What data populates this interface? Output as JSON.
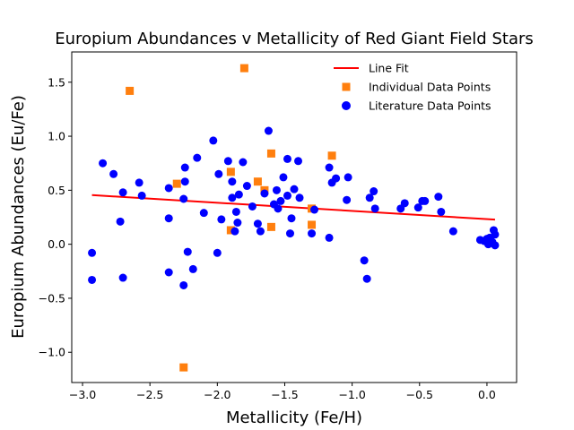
{
  "chart_data": {
    "type": "scatter",
    "title": "Europium Abundances v Metallicity of Red Giant Field Stars",
    "xlabel": "Metallicity (Fe/H)",
    "ylabel": "Europium Abundances (Eu/Fe)",
    "xlim": [
      -3.08,
      0.22
    ],
    "ylim": [
      -1.28,
      1.78
    ],
    "xticks": [
      -3.0,
      -2.5,
      -2.0,
      -1.5,
      -1.0,
      -0.5,
      0.0
    ],
    "xtick_labels": [
      "−3.0",
      "−2.5",
      "−2.0",
      "−1.5",
      "−1.0",
      "−0.5",
      "0.0"
    ],
    "yticks": [
      -1.0,
      -0.5,
      0.0,
      0.5,
      1.0,
      1.5
    ],
    "ytick_labels": [
      "−1.0",
      "−0.5",
      "0.0",
      "0.5",
      "1.0",
      "1.5"
    ],
    "grid": false,
    "legend_position": "top-right",
    "colors": {
      "line_fit": "#ff0000",
      "individual": "#ff7f0e",
      "literature": "#0000ff"
    },
    "line_fit": {
      "name": "Line Fit",
      "x": [
        -2.93,
        0.06
      ],
      "y": [
        0.455,
        0.228
      ]
    },
    "series": [
      {
        "name": "Individual Data Points",
        "marker": "square",
        "points": [
          [
            -2.65,
            1.42
          ],
          [
            -1.8,
            1.63
          ],
          [
            -2.3,
            0.56
          ],
          [
            -2.25,
            -1.14
          ],
          [
            -1.9,
            0.67
          ],
          [
            -1.9,
            0.13
          ],
          [
            -1.7,
            0.58
          ],
          [
            -1.65,
            0.5
          ],
          [
            -1.6,
            0.84
          ],
          [
            -1.6,
            0.16
          ],
          [
            -1.3,
            0.33
          ],
          [
            -1.3,
            0.18
          ],
          [
            -1.15,
            0.82
          ]
        ]
      },
      {
        "name": "Literature Data Points",
        "marker": "circle",
        "points": [
          [
            -2.93,
            -0.08
          ],
          [
            -2.93,
            -0.33
          ],
          [
            -2.85,
            0.75
          ],
          [
            -2.77,
            0.65
          ],
          [
            -2.72,
            0.21
          ],
          [
            -2.7,
            0.48
          ],
          [
            -2.7,
            -0.31
          ],
          [
            -2.58,
            0.57
          ],
          [
            -2.56,
            0.45
          ],
          [
            -2.36,
            0.52
          ],
          [
            -2.36,
            0.24
          ],
          [
            -2.36,
            -0.26
          ],
          [
            -2.25,
            0.42
          ],
          [
            -2.25,
            -0.38
          ],
          [
            -2.24,
            0.71
          ],
          [
            -2.24,
            0.58
          ],
          [
            -2.22,
            -0.07
          ],
          [
            -2.18,
            -0.23
          ],
          [
            -2.15,
            0.8
          ],
          [
            -2.1,
            0.29
          ],
          [
            -2.03,
            0.96
          ],
          [
            -2.0,
            -0.08
          ],
          [
            -1.99,
            0.65
          ],
          [
            -1.97,
            0.23
          ],
          [
            -1.92,
            0.77
          ],
          [
            -1.89,
            0.58
          ],
          [
            -1.89,
            0.43
          ],
          [
            -1.87,
            0.12
          ],
          [
            -1.86,
            0.3
          ],
          [
            -1.85,
            0.2
          ],
          [
            -1.84,
            0.46
          ],
          [
            -1.81,
            0.76
          ],
          [
            -1.78,
            0.54
          ],
          [
            -1.74,
            0.35
          ],
          [
            -1.7,
            0.19
          ],
          [
            -1.68,
            0.12
          ],
          [
            -1.65,
            0.47
          ],
          [
            -1.62,
            1.05
          ],
          [
            -1.58,
            0.37
          ],
          [
            -1.56,
            0.5
          ],
          [
            -1.55,
            0.33
          ],
          [
            -1.53,
            0.4
          ],
          [
            -1.51,
            0.62
          ],
          [
            -1.48,
            0.79
          ],
          [
            -1.48,
            0.45
          ],
          [
            -1.46,
            0.1
          ],
          [
            -1.45,
            0.24
          ],
          [
            -1.43,
            0.51
          ],
          [
            -1.4,
            0.77
          ],
          [
            -1.39,
            0.43
          ],
          [
            -1.28,
            0.32
          ],
          [
            -1.3,
            0.1
          ],
          [
            -1.17,
            0.71
          ],
          [
            -1.17,
            0.06
          ],
          [
            -1.15,
            0.57
          ],
          [
            -1.12,
            0.61
          ],
          [
            -1.04,
            0.41
          ],
          [
            -1.03,
            0.62
          ],
          [
            -0.91,
            -0.15
          ],
          [
            -0.89,
            -0.32
          ],
          [
            -0.87,
            0.43
          ],
          [
            -0.84,
            0.49
          ],
          [
            -0.83,
            0.33
          ],
          [
            -0.64,
            0.33
          ],
          [
            -0.61,
            0.38
          ],
          [
            -0.51,
            0.34
          ],
          [
            -0.48,
            0.4
          ],
          [
            -0.46,
            0.4
          ],
          [
            -0.36,
            0.44
          ],
          [
            -0.34,
            0.3
          ],
          [
            -0.25,
            0.12
          ],
          [
            -0.05,
            0.04
          ],
          [
            -0.02,
            0.03
          ],
          [
            0.0,
            0.05
          ],
          [
            0.01,
            0.0
          ],
          [
            0.02,
            0.06
          ],
          [
            0.03,
            0.03
          ],
          [
            0.04,
            0.02
          ],
          [
            0.05,
            0.13
          ],
          [
            0.06,
            0.09
          ],
          [
            0.06,
            -0.01
          ],
          [
            0.0,
            0.02
          ]
        ]
      }
    ]
  }
}
